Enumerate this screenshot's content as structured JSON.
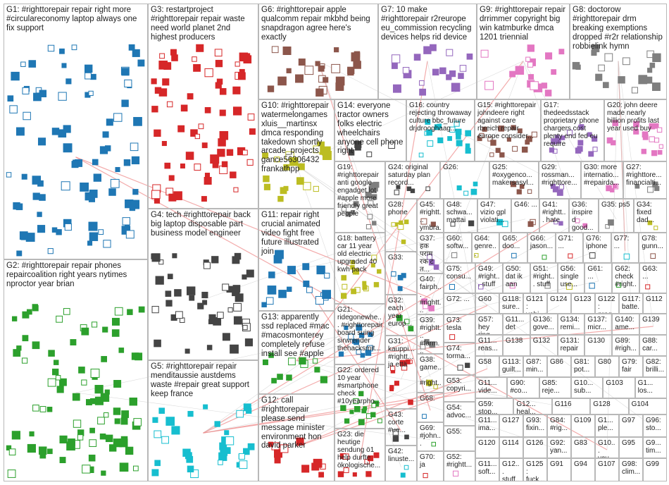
{
  "groups": [
    {
      "label": "G1: #righttorepair repair right more #circulareconomy laptop always one fix support"
    },
    {
      "label": "G2: #righttorepair repair phones repaircoalition right years nytimes nproctor year brian"
    },
    {
      "label": "G3: restartproject #righttorepair repair waste need world planet 2nd highest producers"
    },
    {
      "label": "G4: tech #righttorepair back big laptop disposable part business model engineer"
    },
    {
      "label": "G5: #righttorepair repair menditaussie austdems waste #repair great support keep france"
    },
    {
      "label": "G6: #righttorepair apple qualcomm repair mkbhd being snapdragon agree here's exactly"
    },
    {
      "label": "G7: 10 make #righttorepair r2reurope eu_commission recycling devices helps rid device"
    },
    {
      "label": "G9: #righttorepair repair drrimmer copyright big win katmburke dmca 1201 triennial"
    },
    {
      "label": "G8: doctorow #righttorepair drm breaking exemptions dropped #r2r relationship robbielink hymn"
    },
    {
      "label": "G10: #righttorepair watermelongames xluis__martinsx dmca responding takedown shortly arcade_projects gance56306432 frankathpp"
    },
    {
      "label": "G11: repair right crucial animated video fight free future illustrated join"
    },
    {
      "label": "G13: apparently ssd replaced #mac #macosmonterey completely refuse install see #apple"
    },
    {
      "label": "G12: call #righttorepair please send message minister environment hon david parker"
    },
    {
      "label": "G14: everyone tractor owners folks electric wheelchairs anyone cell phone right"
    },
    {
      "label": "G16: country rejecting throwaway culture bbc_future drjdrooghaag..."
    },
    {
      "label": "G15: #righttorepair johndeere right against care rbreich repair europe consider..."
    },
    {
      "label": "G17: thedeedsstack proprietary phone chargers cost plenty end fed eu require"
    },
    {
      "label": "G20: john deere made nearly billion profits last year used buy"
    },
    {
      "label": "G19: #righttorepair anti google engadget lot #apple more friendly great people"
    },
    {
      "label": "G18: battery car 11 year old electric upgraded 40 kwh pack"
    },
    {
      "label": "G21: ridegonewhe... #righttorepair board suing sirwrender thehacksmit..."
    },
    {
      "label": "G22: ordered 10 year #smartphone check #10yearpho..."
    },
    {
      "label": "G23: die heutige sendung ö1 help durfte ökologische..."
    },
    {
      "label": "G24: original saturday plan record..."
    },
    {
      "label": "G26:"
    },
    {
      "label": "G25: #oxygenco... makersasyl..."
    },
    {
      "label": "G29: rossman... #righttore..."
    },
    {
      "label": "G30: more internatio... #repairda..."
    },
    {
      "label": "G27: #righttore... financialti..."
    },
    {
      "label": "G28: phone"
    },
    {
      "label": "G33:"
    },
    {
      "label": "G32: each year europ..."
    },
    {
      "label": "G31: kauppi... #rightt... ja että"
    },
    {
      "label": "G43: corte #ue..."
    },
    {
      "label": "G42: linuste..."
    },
    {
      "label": "G45: #rightt... ymbra..."
    },
    {
      "label": "G37: हक पराम रक ट त..."
    },
    {
      "label": "G40: fairph... #rightt..."
    },
    {
      "label": "G39: #rightt... #farm... #nov..."
    },
    {
      "label": "G38: game... #right..."
    },
    {
      "label": "G68:"
    },
    {
      "label": "G69: #john..."
    },
    {
      "label": "G70: ja"
    },
    {
      "label": "G48: schwa... mattai"
    },
    {
      "label": "G47: vizio gpl violati..."
    },
    {
      "label": "G46: ..."
    },
    {
      "label": "G41: #rightt... hate"
    },
    {
      "label": "G36: inspired good..."
    },
    {
      "label": "G35: ps5"
    },
    {
      "label": "G34: fixed dad..."
    },
    {
      "label": "G75: consu..."
    },
    {
      "label": "G72: ..."
    },
    {
      "label": "G73: tesla"
    },
    {
      "label": "G74: torma..."
    },
    {
      "label": "G53: copyri..."
    },
    {
      "label": "G54: advoc..."
    },
    {
      "label": "G55:"
    },
    {
      "label": "G52: #rightt..."
    },
    {
      "label": "G60: softw..."
    },
    {
      "label": "G64: genre..."
    },
    {
      "label": "G65: doo..."
    },
    {
      "label": "G66: jason..."
    },
    {
      "label": "G71: ..."
    },
    {
      "label": "G76: iphone"
    },
    {
      "label": "G77: ..."
    },
    {
      "label": "G78: gunn..."
    },
    {
      "label": "G49: #right... stuff"
    },
    {
      "label": "G50: dat ik aan"
    },
    {
      "label": "G51: #right... stuff"
    },
    {
      "label": "G56: single use..."
    },
    {
      "label": "G61: ..."
    },
    {
      "label": "G62: check #right..."
    },
    {
      "label": "G63: ..."
    },
    {
      "label": "G60"
    },
    {
      "label": "G118: sure..."
    },
    {
      "label": "G121: vehi..."
    },
    {
      "label": "G124"
    },
    {
      "label": "G123"
    },
    {
      "label": "G122: prog..."
    },
    {
      "label": "G117: batte..."
    },
    {
      "label": "G112"
    },
    {
      "label": "G57: hey ring..."
    },
    {
      "label": "G11... det"
    },
    {
      "label": "G136: gove..."
    },
    {
      "label": "G134: remi..."
    },
    {
      "label": "G137: micr..."
    },
    {
      "label": "G140: ame..."
    },
    {
      "label": "G139"
    },
    {
      "label": "G11... reas..."
    },
    {
      "label": "G138"
    },
    {
      "label": "G132"
    },
    {
      "label": "G131: repair"
    },
    {
      "label": "G130"
    },
    {
      "label": "G89: #righ..."
    },
    {
      "label": "G88: car..."
    },
    {
      "label": "G58"
    },
    {
      "label": "G113: guilt..."
    },
    {
      "label": "G87: min..."
    },
    {
      "label": "G86"
    },
    {
      "label": "G81: pot..."
    },
    {
      "label": "G80"
    },
    {
      "label": "G79: fair"
    },
    {
      "label": "G82: brilli..."
    },
    {
      "label": "G11... vide..."
    },
    {
      "label": "G90: #co..."
    },
    {
      "label": "G85: reje..."
    },
    {
      "label": "G10... sub..."
    },
    {
      "label": "G103"
    },
    {
      "label": "G1... los..."
    },
    {
      "label": "G59: stop... wor..."
    },
    {
      "label": "G12... heal..."
    },
    {
      "label": "G116"
    },
    {
      "label": "G128"
    },
    {
      "label": "G104"
    },
    {
      "label": "G11... ima..."
    },
    {
      "label": "G127"
    },
    {
      "label": "G93: fixin..."
    },
    {
      "label": "G84: #rig..."
    },
    {
      "label": "G109"
    },
    {
      "label": "G1... ple..."
    },
    {
      "label": "G97"
    },
    {
      "label": "G96: sto..."
    },
    {
      "label": "G120"
    },
    {
      "label": "G114"
    },
    {
      "label": "G126"
    },
    {
      "label": "G92: yan..."
    },
    {
      "label": "G83"
    },
    {
      "label": "G10... yay..."
    },
    {
      "label": "G95"
    },
    {
      "label": "G9... tim..."
    },
    {
      "label": "G11... soft..."
    },
    {
      "label": "G12... stuff..."
    },
    {
      "label": "G125: fuck..."
    },
    {
      "label": "G91"
    },
    {
      "label": "G94"
    },
    {
      "label": "G107"
    },
    {
      "label": "G98: clim..."
    },
    {
      "label": "G99"
    }
  ]
}
